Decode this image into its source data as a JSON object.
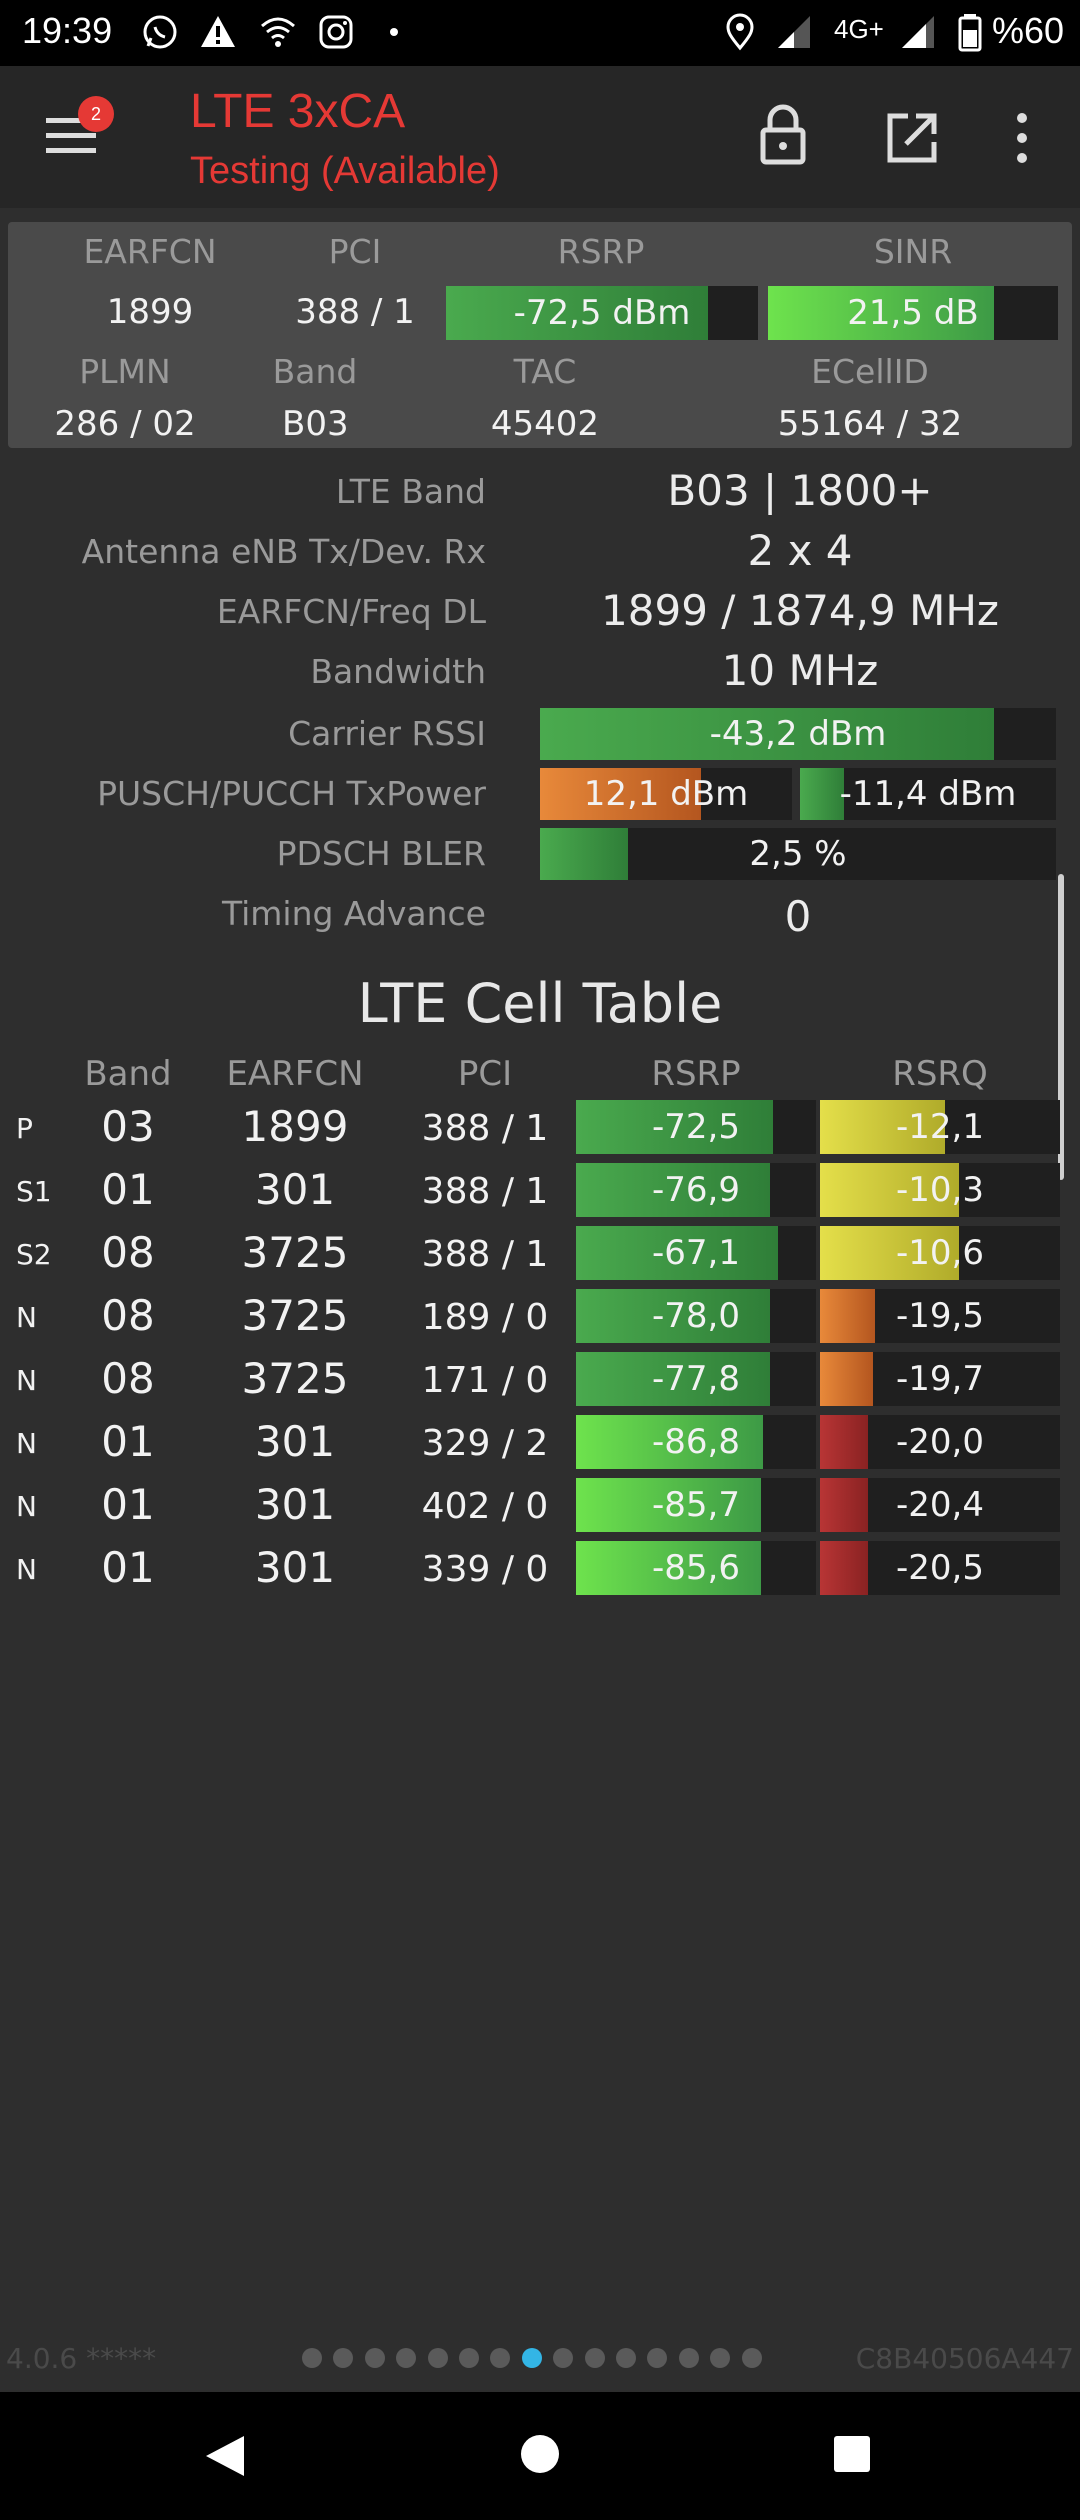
{
  "status_bar": {
    "time": "19:39",
    "network_type": "4G+",
    "battery_text": "%60",
    "icons": [
      "whatsapp-icon",
      "warning-icon",
      "wifi-icon",
      "instagram-icon",
      "dot-icon",
      "location-icon",
      "signal-icon",
      "signal-icon",
      "battery-icon"
    ]
  },
  "app_bar": {
    "title": "LTE 3xCA",
    "subtitle": "Testing (Available)",
    "badge_count": "2"
  },
  "summary": {
    "headers": {
      "earfcn": "EARFCN",
      "pci": "PCI",
      "rsrp": "RSRP",
      "sinr": "SINR",
      "plmn": "PLMN",
      "band": "Band",
      "tac": "TAC",
      "ecellid": "ECellID"
    },
    "earfcn": "1899",
    "pci": "388 / 1",
    "rsrp": {
      "text": "-72,5 dBm",
      "fill": 0.84
    },
    "sinr": {
      "text": "21,5 dB",
      "fill": 0.78
    },
    "plmn": "286 / 02",
    "band": "B03",
    "tac": "45402",
    "ecellid": "55164 / 32"
  },
  "details": {
    "lte_band": {
      "label": "LTE Band",
      "value": "B03 | 1800+"
    },
    "antenna": {
      "label": "Antenna eNB Tx/Dev. Rx",
      "value": "2 x 4"
    },
    "earfcn_freq": {
      "label": "EARFCN/Freq DL",
      "value": "1899 / 1874,9 MHz"
    },
    "bandwidth": {
      "label": "Bandwidth",
      "value": "10 MHz"
    },
    "carrier_rssi": {
      "label": "Carrier RSSI",
      "value": "-43,2 dBm",
      "fill": 0.88
    },
    "tx_power": {
      "label": "PUSCH/PUCCH TxPower",
      "pusch": "12,1 dBm",
      "pusch_fill": 0.64,
      "pucch": "-11,4 dBm",
      "pucch_fill": 0.17
    },
    "pdsch_bler": {
      "label": "PDSCH BLER",
      "value": "2,5 %",
      "fill": 0.17
    },
    "timing_advance": {
      "label": "Timing Advance",
      "value": "0"
    }
  },
  "cell_table": {
    "title": "LTE Cell Table",
    "headers": {
      "band": "Band",
      "earfcn": "EARFCN",
      "pci": "PCI",
      "rsrp": "RSRP",
      "rsrq": "RSRQ"
    },
    "rows": [
      {
        "type": "P",
        "band": "03",
        "earfcn": "1899",
        "pci": "388 / 1",
        "rsrp": "-72,5",
        "rsrp_fill": 0.82,
        "rsrp_color": "green-dark",
        "rsrq": "-12,1",
        "rsrq_fill": 0.52,
        "rsrq_color": "yellow"
      },
      {
        "type": "S1",
        "band": "01",
        "earfcn": "301",
        "pci": "388 / 1",
        "rsrp": "-76,9",
        "rsrp_fill": 0.81,
        "rsrp_color": "green-dark",
        "rsrq": "-10,3",
        "rsrq_fill": 0.58,
        "rsrq_color": "yellow"
      },
      {
        "type": "S2",
        "band": "08",
        "earfcn": "3725",
        "pci": "388 / 1",
        "rsrp": "-67,1",
        "rsrp_fill": 0.84,
        "rsrp_color": "green-dark",
        "rsrq": "-10,6",
        "rsrq_fill": 0.58,
        "rsrq_color": "yellow"
      },
      {
        "type": "N",
        "band": "08",
        "earfcn": "3725",
        "pci": "189 / 0",
        "rsrp": "-78,0",
        "rsrp_fill": 0.81,
        "rsrp_color": "green-dark",
        "rsrq": "-19,5",
        "rsrq_fill": 0.23,
        "rsrq_color": "orange"
      },
      {
        "type": "N",
        "band": "08",
        "earfcn": "3725",
        "pci": "171 / 0",
        "rsrp": "-77,8",
        "rsrp_fill": 0.81,
        "rsrp_color": "green-dark",
        "rsrq": "-19,7",
        "rsrq_fill": 0.22,
        "rsrq_color": "orange"
      },
      {
        "type": "N",
        "band": "01",
        "earfcn": "301",
        "pci": "329 / 2",
        "rsrp": "-86,8",
        "rsrp_fill": 0.78,
        "rsrp_color": "green-light",
        "rsrq": "-20,0",
        "rsrq_fill": 0.2,
        "rsrq_color": "red"
      },
      {
        "type": "N",
        "band": "01",
        "earfcn": "301",
        "pci": "402 / 0",
        "rsrp": "-85,7",
        "rsrp_fill": 0.77,
        "rsrp_color": "green-light",
        "rsrq": "-20,4",
        "rsrq_fill": 0.2,
        "rsrq_color": "red"
      },
      {
        "type": "N",
        "band": "01",
        "earfcn": "301",
        "pci": "339 / 0",
        "rsrp": "-85,6",
        "rsrp_fill": 0.77,
        "rsrp_color": "green-light",
        "rsrq": "-20,5",
        "rsrq_fill": 0.2,
        "rsrq_color": "red"
      }
    ]
  },
  "footer": {
    "version": "4.0.6 *****",
    "device_id": "C8B40506A447",
    "page_count": 15,
    "active_page": 7
  },
  "colors": {
    "accent_red": "#e53935",
    "green_dark": "#3d9a46",
    "green_light": "#5ccd3f",
    "orange": "#e07b2a",
    "yellow": "#d4d03a",
    "red": "#a82c2c",
    "page_dot_active": "#33b5e5"
  }
}
